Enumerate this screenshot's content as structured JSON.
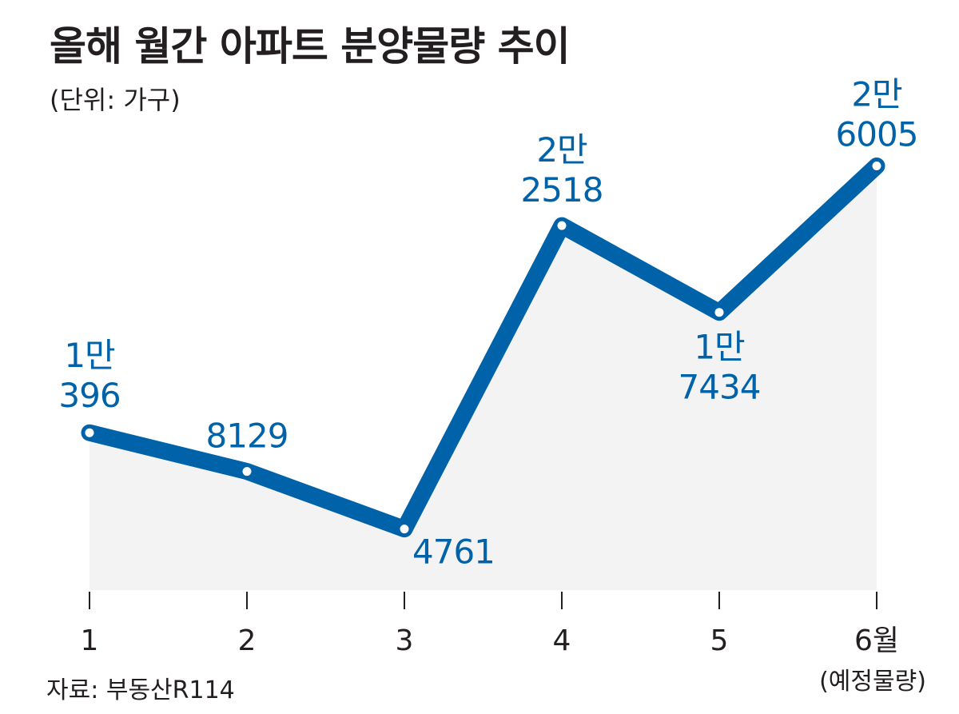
{
  "chart_data": {
    "type": "line",
    "title": "올해 월간 아파트 분양물량 추이",
    "unit": "(단위: 가구)",
    "source": "자료: 부동산R114",
    "categories": [
      "1",
      "2",
      "3",
      "4",
      "5",
      "6월"
    ],
    "category_notes": [
      "",
      "",
      "",
      "",
      "",
      "(예정물량)"
    ],
    "values": [
      10396,
      8129,
      4761,
      22518,
      17434,
      26005
    ],
    "data_labels": [
      [
        "1만",
        "396"
      ],
      [
        "8129"
      ],
      [
        "4761"
      ],
      [
        "2만",
        "2518"
      ],
      [
        "1만",
        "7434"
      ],
      [
        "2만",
        "6005"
      ]
    ],
    "label_position": [
      "above",
      "above",
      "below-right",
      "above",
      "below",
      "above"
    ],
    "line_color": "#0062a8",
    "fill_color": "#f3f3f4",
    "grid": false,
    "legend": "none"
  }
}
